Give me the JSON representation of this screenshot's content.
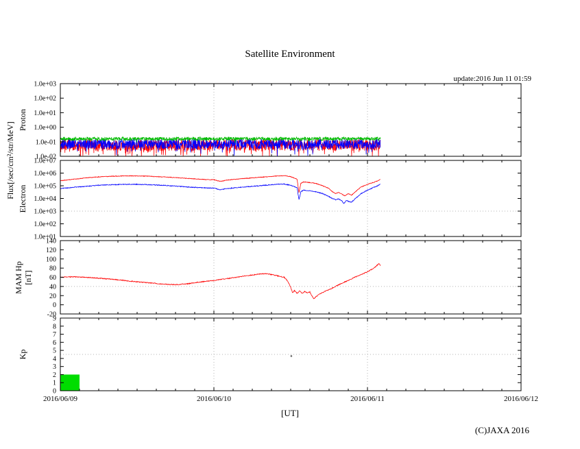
{
  "header": {
    "title": "Satellite Environment",
    "update_text": "update:2016 Jun 11 01:59"
  },
  "labels": {
    "flux_axis": "Flux[/sec/cm²/str/MeV]"
  },
  "footer": {
    "xlabel": "[UT]",
    "copyright": "(C)JAXA 2016"
  },
  "x_axis": {
    "tick_labels": [
      "2016/06/09",
      "2016/06/10",
      "2016/06/11",
      "2016/06/12"
    ],
    "total_hours": 72,
    "data_end_hour": 50
  },
  "chart_data": [
    {
      "id": "proton",
      "type": "noise-line",
      "ylabel": "Proton",
      "yscale": "log",
      "ymin": 0.01,
      "ymax": 1000.0,
      "ytick_labels": [
        "1.0e+03",
        "1.0e+02",
        "1.0e+01",
        "1.0e+00",
        "1.0e-01",
        "1.0e-02"
      ],
      "ytick_values": [
        1000,
        100,
        10,
        1,
        0.1,
        0.01
      ],
      "ygrid": [],
      "series": [
        {
          "name": "proton-red-channel",
          "color": "#ff0000",
          "base": 0.06,
          "jitter": 0.4,
          "spike_prob": 0.12,
          "spike_depth": 0.75
        },
        {
          "name": "proton-blue-channel",
          "color": "#0000ff",
          "base": 0.07,
          "jitter": 0.35,
          "spike_prob": 0.08,
          "spike_depth": 0.55
        },
        {
          "name": "proton-green-channel",
          "color": "#00bb00",
          "base": 0.16,
          "jitter": 0.12,
          "spike_prob": 0.03,
          "spike_depth": 0.25
        }
      ]
    },
    {
      "id": "electron",
      "type": "line",
      "ylabel": "Electron",
      "yscale": "log",
      "ymin": 10.0,
      "ymax": 10000000.0,
      "ytick_labels": [
        "1.0e+07",
        "1.0e+06",
        "1.0e+05",
        "1.0e+04",
        "1.0e+03",
        "1.0e+02",
        "1.0e+01"
      ],
      "ytick_values": [
        10000000.0,
        1000000.0,
        100000.0,
        10000.0,
        1000.0,
        100.0,
        10.0
      ],
      "ygrid": [
        1000.0
      ],
      "series": [
        {
          "name": "electron-red-channel",
          "color": "#ff0000",
          "jitter": 0.025,
          "points": [
            [
              0,
              250000.0
            ],
            [
              2,
              320000.0
            ],
            [
              4,
              420000.0
            ],
            [
              6,
              500000.0
            ],
            [
              8,
              560000.0
            ],
            [
              10,
              600000.0
            ],
            [
              12,
              600000.0
            ],
            [
              14,
              560000.0
            ],
            [
              16,
              500000.0
            ],
            [
              18,
              440000.0
            ],
            [
              20,
              380000.0
            ],
            [
              22,
              320000.0
            ],
            [
              24,
              300000.0
            ],
            [
              25,
              220000.0
            ],
            [
              26,
              280000.0
            ],
            [
              28,
              350000.0
            ],
            [
              30,
              420000.0
            ],
            [
              32,
              500000.0
            ],
            [
              34,
              600000.0
            ],
            [
              35,
              630000.0
            ],
            [
              36,
              520000.0
            ],
            [
              36.6,
              400000.0
            ],
            [
              37.0,
              320000.0
            ],
            [
              37.3,
              30000.0
            ],
            [
              37.6,
              160000.0
            ],
            [
              38,
              200000.0
            ],
            [
              39,
              180000.0
            ],
            [
              40,
              150000.0
            ],
            [
              41,
              100000.0
            ],
            [
              42,
              60000.0
            ],
            [
              42.5,
              35000.0
            ],
            [
              43,
              25000.0
            ],
            [
              43.5,
              30000.0
            ],
            [
              44,
              22000.0
            ],
            [
              44.5,
              16000.0
            ],
            [
              45,
              24000.0
            ],
            [
              45.5,
              18000.0
            ],
            [
              46,
              30000.0
            ],
            [
              46.5,
              50000.0
            ],
            [
              47,
              80000.0
            ],
            [
              48,
              130000.0
            ],
            [
              49,
              190000.0
            ],
            [
              49.5,
              230000.0
            ],
            [
              50,
              320000.0
            ]
          ]
        },
        {
          "name": "electron-blue-channel",
          "color": "#0000ff",
          "jitter": 0.03,
          "points": [
            [
              0,
              60000.0
            ],
            [
              2,
              75000.0
            ],
            [
              4,
              90000.0
            ],
            [
              6,
              110000.0
            ],
            [
              8,
              120000.0
            ],
            [
              10,
              130000.0
            ],
            [
              12,
              130000.0
            ],
            [
              14,
              120000.0
            ],
            [
              16,
              110000.0
            ],
            [
              18,
              95000.0
            ],
            [
              20,
              80000.0
            ],
            [
              22,
              70000.0
            ],
            [
              24,
              65000.0
            ],
            [
              25,
              48000.0
            ],
            [
              26,
              60000.0
            ],
            [
              28,
              75000.0
            ],
            [
              30,
              90000.0
            ],
            [
              32,
              110000.0
            ],
            [
              34,
              130000.0
            ],
            [
              35,
              135000.0
            ],
            [
              36,
              110000.0
            ],
            [
              36.6,
              85000.0
            ],
            [
              37.0,
              70000.0
            ],
            [
              37.3,
              8000.0
            ],
            [
              37.6,
              35000.0
            ],
            [
              38,
              45000.0
            ],
            [
              39,
              40000.0
            ],
            [
              40,
              33000.0
            ],
            [
              41,
              24000.0
            ],
            [
              42,
              14000.0
            ],
            [
              42.5,
              10000.0
            ],
            [
              43,
              8000.0
            ],
            [
              43.5,
              9000.0
            ],
            [
              44,
              6500.0
            ],
            [
              44.3,
              4000.0
            ],
            [
              44.7,
              7000.0
            ],
            [
              45,
              6000.0
            ],
            [
              45.5,
              5000.0
            ],
            [
              46,
              9000.0
            ],
            [
              46.5,
              14000.0
            ],
            [
              47,
              24000.0
            ],
            [
              48,
              45000.0
            ],
            [
              49,
              75000.0
            ],
            [
              49.5,
              95000.0
            ],
            [
              50,
              140000.0
            ]
          ]
        }
      ]
    },
    {
      "id": "mam-hp",
      "type": "line",
      "ylabel": "MAM Hp",
      "ylabel2": "[nT]",
      "yscale": "linear",
      "ymin": -20,
      "ymax": 140,
      "ytick_labels": [
        "140",
        "120",
        "100",
        "80",
        "60",
        "40",
        "20",
        "0",
        "-20"
      ],
      "ytick_values": [
        140,
        120,
        100,
        80,
        60,
        40,
        20,
        0,
        -20
      ],
      "ygrid": [
        40
      ],
      "series": [
        {
          "name": "hp-magnetic-field",
          "color": "#ff0000",
          "jitter": 0.9,
          "points": [
            [
              0,
              60
            ],
            [
              2,
              61
            ],
            [
              4,
              60
            ],
            [
              6,
              58
            ],
            [
              8,
              56
            ],
            [
              10,
              53
            ],
            [
              12,
              50
            ],
            [
              14,
              48
            ],
            [
              16,
              45
            ],
            [
              18,
              44
            ],
            [
              20,
              46
            ],
            [
              22,
              50
            ],
            [
              24,
              53
            ],
            [
              26,
              57
            ],
            [
              28,
              61
            ],
            [
              30,
              65
            ],
            [
              31,
              67
            ],
            [
              32,
              68
            ],
            [
              33,
              66
            ],
            [
              34,
              63
            ],
            [
              35,
              60
            ],
            [
              35.5,
              52
            ],
            [
              36,
              38
            ],
            [
              36.3,
              26
            ],
            [
              36.6,
              31
            ],
            [
              37,
              25
            ],
            [
              37.4,
              30
            ],
            [
              37.8,
              25
            ],
            [
              38.2,
              29
            ],
            [
              38.6,
              26
            ],
            [
              39,
              28
            ],
            [
              39.3,
              20
            ],
            [
              39.6,
              13
            ],
            [
              40,
              18
            ],
            [
              40.5,
              23
            ],
            [
              41,
              27
            ],
            [
              41.5,
              30
            ],
            [
              42,
              33
            ],
            [
              43,
              40
            ],
            [
              44,
              47
            ],
            [
              45,
              53
            ],
            [
              46,
              60
            ],
            [
              47,
              66
            ],
            [
              48,
              72
            ],
            [
              48.5,
              76
            ],
            [
              49,
              80
            ],
            [
              49.5,
              86
            ],
            [
              49.8,
              90
            ],
            [
              50,
              86
            ]
          ]
        }
      ]
    },
    {
      "id": "kp",
      "type": "bars",
      "ylabel": "Kp",
      "yscale": "linear",
      "ymin": 0,
      "ymax": 9,
      "ytick_labels": [
        "9",
        "8",
        "7",
        "6",
        "5",
        "4",
        "3",
        "2",
        "1",
        "0"
      ],
      "ytick_values": [
        9,
        8,
        7,
        6,
        5,
        4,
        3,
        2,
        1,
        0
      ],
      "ygrid": [
        4.5
      ],
      "bars": [
        {
          "start_hour": 0,
          "duration_hours": 3,
          "value": 2,
          "color": "#00dd00"
        }
      ],
      "dots": [
        {
          "hour": 36.1,
          "value": 4.3,
          "color": "#666666"
        }
      ]
    }
  ]
}
